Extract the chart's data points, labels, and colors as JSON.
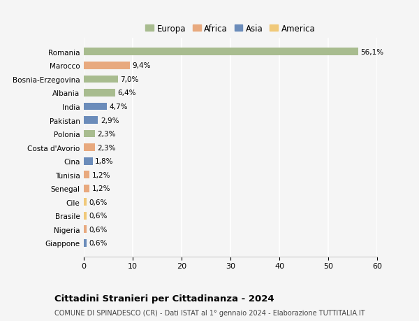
{
  "countries": [
    "Romania",
    "Marocco",
    "Bosnia-Erzegovina",
    "Albania",
    "India",
    "Pakistan",
    "Polonia",
    "Costa d'Avorio",
    "Cina",
    "Tunisia",
    "Senegal",
    "Cile",
    "Brasile",
    "Nigeria",
    "Giappone"
  ],
  "values": [
    56.1,
    9.4,
    7.0,
    6.4,
    4.7,
    2.9,
    2.3,
    2.3,
    1.8,
    1.2,
    1.2,
    0.6,
    0.6,
    0.6,
    0.6
  ],
  "labels": [
    "56,1%",
    "9,4%",
    "7,0%",
    "6,4%",
    "4,7%",
    "2,9%",
    "2,3%",
    "2,3%",
    "1,8%",
    "1,2%",
    "1,2%",
    "0,6%",
    "0,6%",
    "0,6%",
    "0,6%"
  ],
  "colors": [
    "#a8bc8f",
    "#e8a97e",
    "#a8bc8f",
    "#a8bc8f",
    "#6b8cba",
    "#6b8cba",
    "#a8bc8f",
    "#e8a97e",
    "#6b8cba",
    "#e8a97e",
    "#e8a97e",
    "#f0c97a",
    "#f0c97a",
    "#e8a97e",
    "#6b8cba"
  ],
  "legend_labels": [
    "Europa",
    "Africa",
    "Asia",
    "America"
  ],
  "legend_colors": [
    "#a8bc8f",
    "#e8a97e",
    "#6b8cba",
    "#f0c97a"
  ],
  "title": "Cittadini Stranieri per Cittadinanza - 2024",
  "subtitle": "COMUNE DI SPINADESCO (CR) - Dati ISTAT al 1° gennaio 2024 - Elaborazione TUTTITALIA.IT",
  "xlim": [
    0,
    60
  ],
  "xticks": [
    0,
    10,
    20,
    30,
    40,
    50,
    60
  ],
  "background_color": "#f5f5f5",
  "grid_color": "#ffffff",
  "bar_height": 0.55
}
